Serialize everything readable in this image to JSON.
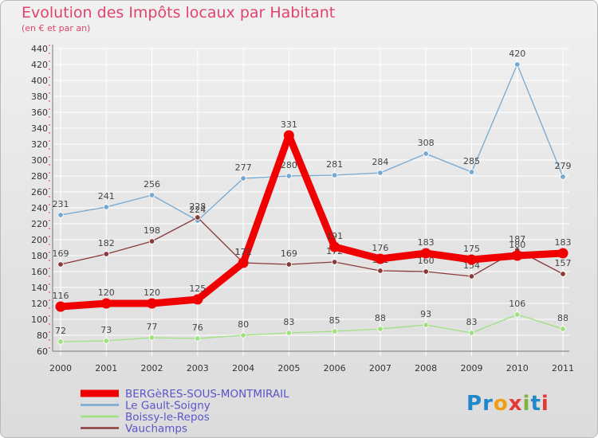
{
  "header": {
    "title": "Evolution des Impôts locaux par Habitant",
    "subtitle": "(en € et par an)"
  },
  "logo": {
    "text": "Proxiti",
    "colors": [
      "#1e88c8",
      "#1e88c8",
      "#f39c12",
      "#e53935",
      "#7cb342",
      "#1e88c8",
      "#e53935"
    ]
  },
  "chart_data": {
    "type": "line",
    "title": "Evolution des Impôts locaux par Habitant",
    "subtitle": "(en € et par an)",
    "x": [
      2000,
      2001,
      2002,
      2003,
      2004,
      2005,
      2006,
      2007,
      2008,
      2009,
      2010,
      2011
    ],
    "ylim": [
      60,
      440
    ],
    "yticks": [
      60,
      80,
      100,
      120,
      140,
      160,
      180,
      200,
      220,
      240,
      260,
      280,
      300,
      320,
      340,
      360,
      380,
      400,
      420,
      440
    ],
    "grid": true,
    "legend_position": "bottom-left",
    "series": [
      {
        "name": "BERGèRES-SOUS-MONTMIRAIL",
        "color": "#f00000",
        "emphasis": true,
        "values": [
          116,
          120,
          120,
          125,
          171,
          331,
          191,
          176,
          183,
          175,
          180,
          183
        ],
        "labels": [
          "116",
          "120",
          "120",
          "125",
          "171",
          "331",
          "191",
          "176",
          "183",
          "175",
          "180",
          "183"
        ]
      },
      {
        "name": "Le Gault-Soigny",
        "color": "#74a9d4",
        "values": [
          231,
          241,
          256,
          224,
          277,
          280,
          281,
          284,
          308,
          285,
          420,
          279
        ],
        "labels": [
          "231",
          "241",
          "256",
          "224",
          "277",
          "280",
          "281",
          "284",
          "308",
          "285",
          "420",
          "279"
        ]
      },
      {
        "name": "Boissy-le-Repos",
        "color": "#9fe07f",
        "values": [
          72,
          73,
          77,
          76,
          80,
          83,
          85,
          88,
          93,
          83,
          106,
          88
        ],
        "labels": [
          "72",
          "73",
          "77",
          "76",
          "80",
          "83",
          "85",
          "88",
          "93",
          "83",
          "106",
          "88"
        ]
      },
      {
        "name": "Vauchamps",
        "color": "#8b3a3a",
        "values": [
          169,
          182,
          198,
          228,
          171,
          169,
          172,
          161,
          160,
          154,
          187,
          157
        ],
        "labels": [
          "169",
          "182",
          "198",
          "228",
          "171",
          "169",
          "172",
          "161",
          "160",
          "154",
          "187",
          "157"
        ]
      }
    ]
  }
}
